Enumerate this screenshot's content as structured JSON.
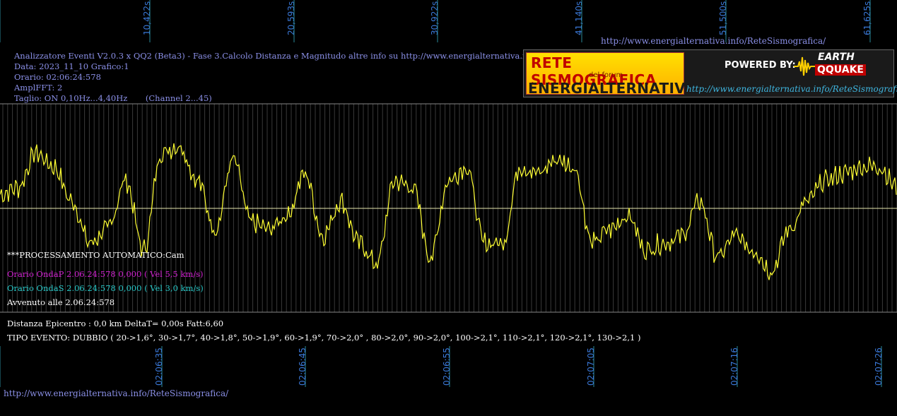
{
  "header": {
    "title_line": "Analizzatore Eventi V2.0.3 x QQ2 (Beta3) - Fase 3.Calcolo Distanza e Magnitudo altre info su http://www.energialternativa.info/ReteSism",
    "data_line": "Data: 2023_11_10 Grafico:1",
    "orario_line": "Orario: 02:06:24:578",
    "ampl_line": "AmplFFT: 2",
    "taglio_line": "Taglio: ON 0,10Hz...4,40Hz       (Channel 2...45)",
    "top_link": "http://www.energialternativa.info/ReteSismografica/"
  },
  "logo": {
    "line1": "RETE SISMOGRAFICA",
    "line2": "del forum",
    "line3": "ENERGIALTERNATIVA",
    "powered": "POWERED BY:",
    "brand1": "EARTH",
    "brand2": "QQUAKE",
    "link": "http://www.energialternativa.info/ReteSismografica"
  },
  "top_ticks": [
    "10,422s",
    "20,593s",
    "30,922s",
    "41,140s",
    "51,500s",
    "61,625s"
  ],
  "bottom_ticks": [
    "02:06:35",
    "02:06:45",
    "02:06:55",
    "02:07:05",
    "02:07:16",
    "02:07:26"
  ],
  "processing": {
    "auto": "***PROCESSAMENTO AUTOMATICO:Cam",
    "onda_p": "Orario OndaP 2.06.24:578  0,000 ( Vel 5,5 km/s)",
    "onda_s": "Orario OndaS 2.06.24:578  0,000 ( Vel 3,0 km/s)",
    "avvenuto": "Avvenuto alle 2.06.24:578",
    "distanza": "Distanza Epicentro : 0,0 km DeltaT= 0,00s  Fatt:6,60",
    "tipo": "TIPO EVENTO: DUBBIO ( 20->1,6°, 30->1,7°, 40->1,8°, 50->1,9°, 60->1,9°, 70->2,0° , 80->2,0°, 90->2,0°, 100->2,1°, 110->2,1°, 120->2,1°, 130->2,1 )"
  },
  "footer_link": "http://www.energialternativa.info/ReteSismografica/",
  "colors": {
    "trace": "#ffff33",
    "baseline": "#e8e8b0",
    "onda_p": "#d020d0",
    "onda_s": "#28c8c8",
    "tick_label": "#3a78d8",
    "info_text": "#8a8fe6"
  },
  "chart_data": {
    "type": "line",
    "title": "",
    "xlabel": "",
    "ylabel": "",
    "x": [
      0,
      2,
      4,
      6,
      8,
      10,
      12,
      14,
      16,
      18,
      20,
      22,
      24,
      26,
      28,
      30,
      32,
      34,
      36,
      38,
      40,
      42,
      44,
      46,
      48,
      50,
      52,
      54,
      56,
      58,
      60,
      62,
      64,
      66,
      68,
      70,
      72,
      74,
      76,
      78,
      80,
      82,
      84,
      86,
      88,
      90,
      92,
      94,
      96,
      98,
      100
    ],
    "values": [
      0.2,
      0.3,
      0.8,
      0.6,
      0.1,
      -0.5,
      -0.3,
      0.4,
      -0.6,
      0.8,
      0.9,
      0.4,
      -0.3,
      0.7,
      -0.2,
      -0.3,
      -0.1,
      0.5,
      -0.4,
      0.1,
      -0.5,
      -0.8,
      0.4,
      0.3,
      -0.7,
      0.4,
      0.6,
      -0.5,
      -0.5,
      0.6,
      0.5,
      0.7,
      0.6,
      -0.5,
      -0.3,
      -0.1,
      -0.6,
      -0.5,
      -0.4,
      0.1,
      -0.7,
      -0.4,
      -0.6,
      -0.9,
      -0.3,
      0.1,
      0.4,
      0.5,
      0.6,
      0.6,
      0.3
    ],
    "baseline": 0,
    "ylim": [
      -1.2,
      1.2
    ],
    "grid": true
  }
}
